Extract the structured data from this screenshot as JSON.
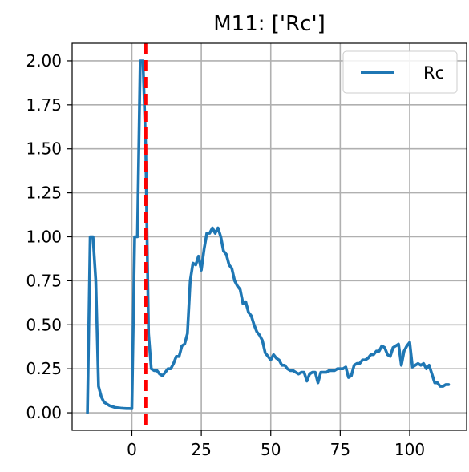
{
  "chart_data": {
    "type": "line",
    "title": "M11: ['Rc']",
    "xlabel": "",
    "ylabel": "",
    "xlim": [
      -21.5,
      120.5
    ],
    "ylim": [
      -0.1,
      2.1
    ],
    "xticks": [
      0,
      25,
      50,
      75,
      100
    ],
    "xtick_labels": [
      "0",
      "25",
      "50",
      "75",
      "100"
    ],
    "yticks": [
      0.0,
      0.25,
      0.5,
      0.75,
      1.0,
      1.25,
      1.5,
      1.75,
      2.0
    ],
    "ytick_labels": [
      "0.00",
      "0.25",
      "0.50",
      "0.75",
      "1.00",
      "1.25",
      "1.50",
      "1.75",
      "2.00"
    ],
    "grid": true,
    "legend_position": "top-right",
    "colors": {
      "series": "#1f77b4",
      "vline": "#ff0000",
      "grid": "#b0b0b0"
    },
    "vline": {
      "x": 5,
      "style": "dashed"
    },
    "series": [
      {
        "name": "Rc",
        "x": [
          -16,
          -15,
          -14,
          -13,
          -12,
          -11,
          -10,
          -9,
          -8,
          -7,
          -6,
          -5,
          -4,
          -3,
          -2,
          -1,
          0,
          1,
          2,
          3,
          4,
          5,
          6,
          7,
          8,
          9,
          10,
          11,
          12,
          13,
          14,
          15,
          16,
          17,
          18,
          19,
          20,
          21,
          22,
          23,
          24,
          25,
          26,
          27,
          28,
          29,
          30,
          31,
          32,
          33,
          34,
          35,
          36,
          37,
          38,
          39,
          40,
          41,
          42,
          43,
          44,
          45,
          46,
          47,
          48,
          49,
          50,
          51,
          52,
          53,
          54,
          55,
          56,
          57,
          58,
          59,
          60,
          61,
          62,
          63,
          64,
          65,
          66,
          67,
          68,
          69,
          70,
          71,
          72,
          73,
          74,
          75,
          76,
          77,
          78,
          79,
          80,
          81,
          82,
          83,
          84,
          85,
          86,
          87,
          88,
          89,
          90,
          91,
          92,
          93,
          94,
          95,
          96,
          97,
          98,
          99,
          100,
          101,
          102,
          103,
          104,
          105,
          106,
          107,
          108,
          109,
          110,
          111,
          112,
          113,
          114
        ],
        "values": [
          0.0,
          1.0,
          1.0,
          0.75,
          0.15,
          0.09,
          0.06,
          0.05,
          0.04,
          0.035,
          0.03,
          0.028,
          0.026,
          0.025,
          0.024,
          0.024,
          0.023,
          1.0,
          1.0,
          2.0,
          2.0,
          1.5,
          0.45,
          0.25,
          0.24,
          0.24,
          0.22,
          0.21,
          0.23,
          0.25,
          0.25,
          0.28,
          0.32,
          0.32,
          0.38,
          0.39,
          0.45,
          0.75,
          0.85,
          0.84,
          0.89,
          0.81,
          0.93,
          1.02,
          1.02,
          1.05,
          1.02,
          1.05,
          1.0,
          0.92,
          0.9,
          0.84,
          0.82,
          0.75,
          0.72,
          0.7,
          0.62,
          0.63,
          0.57,
          0.55,
          0.5,
          0.46,
          0.44,
          0.41,
          0.34,
          0.32,
          0.3,
          0.33,
          0.31,
          0.3,
          0.27,
          0.27,
          0.25,
          0.24,
          0.24,
          0.23,
          0.22,
          0.23,
          0.23,
          0.18,
          0.22,
          0.23,
          0.23,
          0.17,
          0.23,
          0.23,
          0.23,
          0.24,
          0.24,
          0.24,
          0.25,
          0.25,
          0.25,
          0.26,
          0.2,
          0.21,
          0.27,
          0.28,
          0.28,
          0.3,
          0.3,
          0.31,
          0.33,
          0.33,
          0.35,
          0.35,
          0.38,
          0.37,
          0.33,
          0.32,
          0.37,
          0.38,
          0.39,
          0.27,
          0.35,
          0.38,
          0.4,
          0.26,
          0.27,
          0.28,
          0.27,
          0.28,
          0.25,
          0.27,
          0.22,
          0.17,
          0.17,
          0.15,
          0.15,
          0.16,
          0.16
        ]
      }
    ]
  }
}
